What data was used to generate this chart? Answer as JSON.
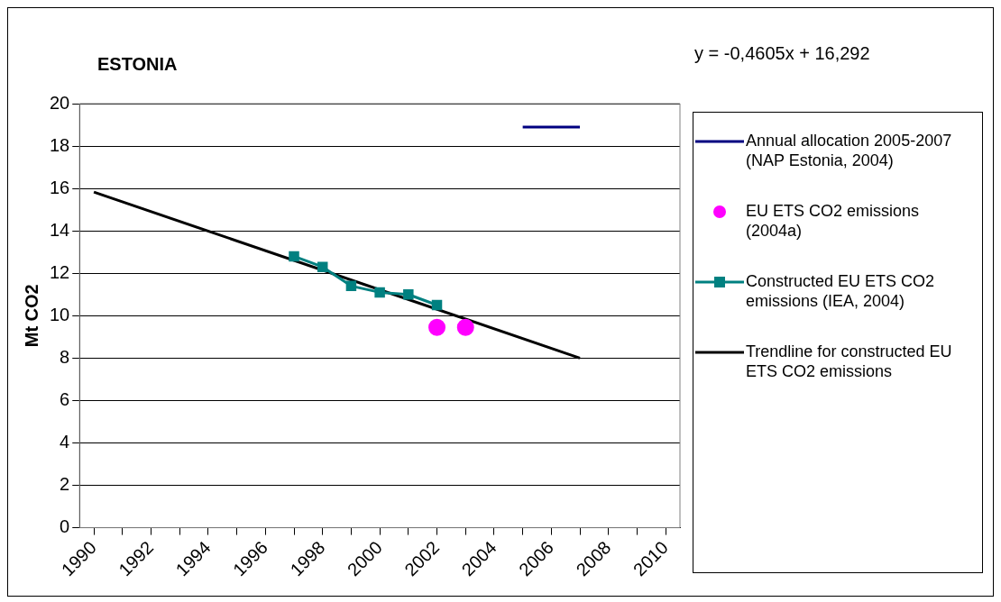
{
  "chart_data": {
    "type": "line",
    "title": "ESTONIA",
    "ylabel": "Mt CO2",
    "annotations": [
      "y = -0,4605x + 16,292"
    ],
    "xlim": [
      1989.5,
      2010.5
    ],
    "xticks": [
      1990,
      {
        "value": 1991,
        "label": null
      },
      1992,
      {
        "value": 1993,
        "label": null
      },
      1994,
      {
        "value": 1995,
        "label": null
      },
      1996,
      {
        "value": 1997,
        "label": null
      },
      1998,
      {
        "value": 1999,
        "label": null
      },
      2000,
      {
        "value": 2001,
        "label": null
      },
      2002,
      {
        "value": 2003,
        "label": null
      },
      2004,
      {
        "value": 2005,
        "label": null
      },
      2006,
      {
        "value": 2007,
        "label": null
      },
      2008,
      {
        "value": 2009,
        "label": null
      },
      2010
    ],
    "ylim": [
      0,
      20
    ],
    "yticks": [
      0,
      2,
      4,
      6,
      8,
      10,
      12,
      14,
      16,
      18,
      20
    ],
    "grid": "y",
    "legend": "right",
    "series": [
      {
        "name": "Annual allocation 2005-2007 (NAP Estonia, 2004)",
        "type": "line",
        "color": "#000080",
        "marker": "none",
        "x": [
          2005,
          2006,
          2007
        ],
        "values": [
          18.9,
          18.9,
          18.9
        ]
      },
      {
        "name": "EU ETS CO2 emissions (2004a)",
        "type": "scatter",
        "color": "#ff00ff",
        "marker": "circle",
        "x": [
          2002,
          2003
        ],
        "values": [
          9.45,
          9.45
        ]
      },
      {
        "name": "Constructed EU ETS CO2 emissions (IEA, 2004)",
        "type": "line",
        "color": "#008080",
        "marker": "square",
        "x": [
          1997,
          1998,
          1999,
          2000,
          2001,
          2002
        ],
        "values": [
          12.8,
          12.3,
          11.4,
          11.1,
          11.0,
          10.5
        ]
      },
      {
        "name": "Trendline for constructed EU ETS CO2 emissions",
        "type": "line",
        "color": "#000000",
        "marker": "none",
        "x": [
          1990,
          2007
        ],
        "values": [
          15.83,
          8.0
        ]
      }
    ]
  }
}
